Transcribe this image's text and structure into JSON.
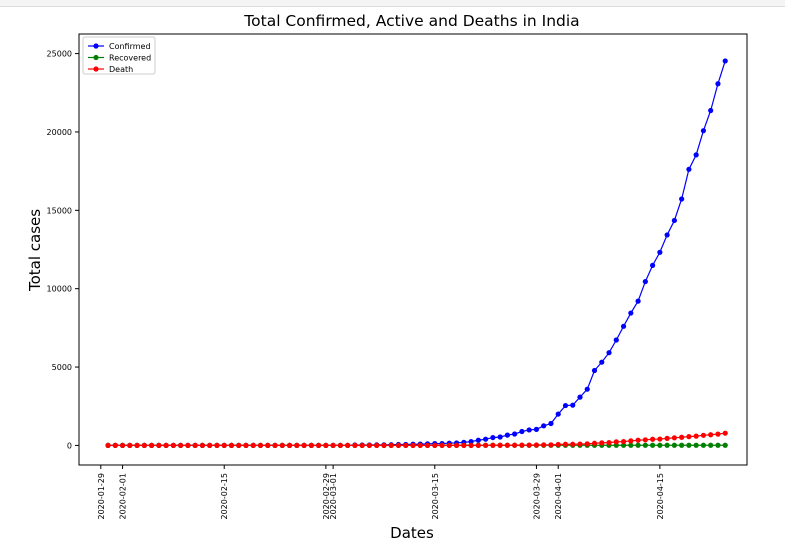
{
  "chart_data": {
    "type": "line",
    "title": "Total Confirmed, Active and Deaths in India",
    "xlabel": "Dates",
    "ylabel": "Total cases",
    "x_start": "2020-01-30",
    "x_end": "2020-04-24",
    "x_ticks": [
      "2020-01-29",
      "2020-02-01",
      "2020-02-15",
      "2020-02-29",
      "2020-03-01",
      "2020-03-15",
      "2020-03-29",
      "2020-04-01",
      "2020-04-15"
    ],
    "xlim": [
      "2020-01-26",
      "2020-04-27"
    ],
    "y_ticks": [
      0,
      5000,
      10000,
      15000,
      20000,
      25000
    ],
    "ylim": [
      -1250,
      26250
    ],
    "legend_position": "upper-left",
    "grid": false,
    "series": [
      {
        "name": "Confirmed",
        "color": "#0000ff",
        "values": [
          1,
          1,
          1,
          2,
          2,
          3,
          3,
          3,
          3,
          3,
          3,
          3,
          3,
          3,
          3,
          3,
          3,
          3,
          3,
          3,
          3,
          3,
          3,
          3,
          3,
          3,
          3,
          3,
          3,
          3,
          3,
          3,
          5,
          6,
          28,
          30,
          31,
          34,
          39,
          43,
          56,
          62,
          73,
          82,
          102,
          113,
          119,
          142,
          156,
          194,
          244,
          330,
          396,
          499,
          536,
          657,
          727,
          887,
          987,
          1024,
          1251,
          1397,
          1998,
          2543,
          2567,
          3082,
          3588,
          4778,
          5311,
          5916,
          6725,
          7598,
          8446,
          9205,
          10453,
          11487,
          12322,
          13430,
          14352,
          15722,
          17615,
          18539,
          20080,
          21370,
          23077,
          24530
        ]
      },
      {
        "name": "Recovered",
        "color": "#008000",
        "values": [
          0,
          0,
          0,
          0,
          0,
          0,
          0,
          0,
          0,
          0,
          0,
          0,
          0,
          0,
          0,
          0,
          3,
          3,
          3,
          3,
          3,
          3,
          3,
          3,
          3,
          3,
          3,
          3,
          3,
          3,
          3,
          3,
          3,
          3,
          3,
          3,
          3,
          3,
          3,
          3,
          3,
          3,
          3,
          4,
          4,
          4,
          10,
          10,
          10,
          10,
          10,
          10,
          10,
          10,
          10,
          10,
          10,
          10,
          10,
          10,
          10,
          10,
          10,
          10,
          10,
          10,
          10,
          10,
          10,
          10,
          10,
          10,
          10,
          10,
          10,
          10,
          10,
          10,
          10,
          10,
          10,
          10,
          10,
          10,
          10,
          10
        ]
      },
      {
        "name": "Death",
        "color": "#ff0000",
        "values": [
          0,
          0,
          0,
          0,
          0,
          0,
          0,
          0,
          0,
          0,
          0,
          0,
          0,
          0,
          0,
          0,
          0,
          0,
          0,
          0,
          0,
          0,
          0,
          0,
          0,
          0,
          0,
          0,
          0,
          0,
          0,
          0,
          0,
          0,
          0,
          0,
          0,
          0,
          0,
          0,
          0,
          1,
          1,
          2,
          2,
          2,
          3,
          3,
          4,
          4,
          4,
          4,
          7,
          9,
          10,
          10,
          12,
          19,
          20,
          27,
          32,
          35,
          58,
          72,
          72,
          86,
          99,
          136,
          160,
          178,
          226,
          246,
          288,
          331,
          358,
          393,
          405,
          448,
          486,
          521,
          559,
          592,
          645,
          681,
          721,
          780
        ]
      }
    ]
  }
}
